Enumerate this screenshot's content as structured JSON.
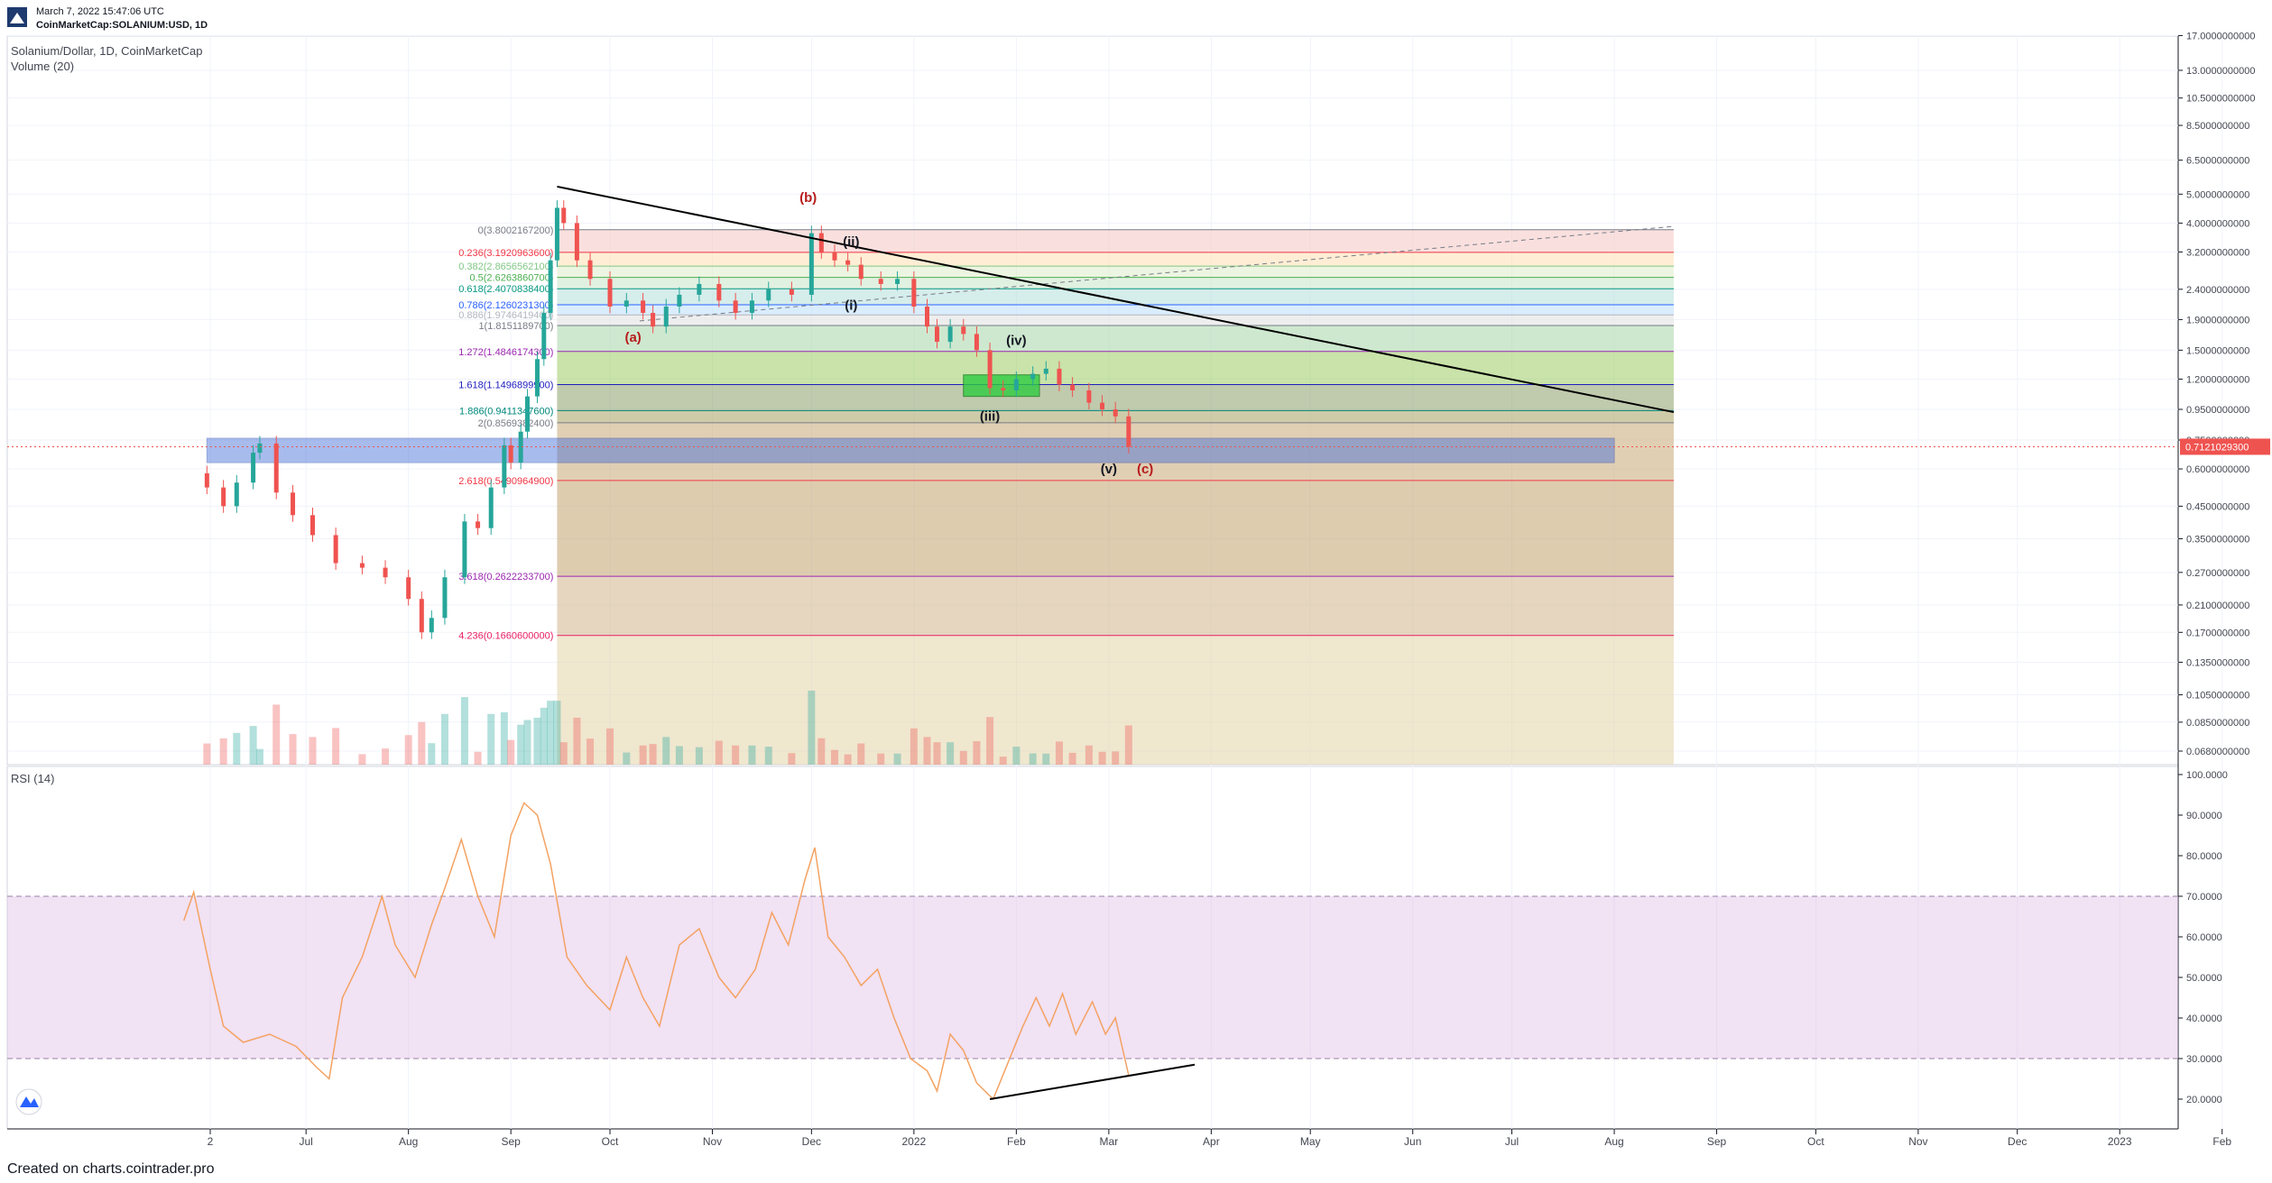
{
  "header": {
    "timestamp": "March 7, 2022 15:47:06 UTC",
    "symbol": "CoinMarketCap:SOLANIUM:USD, 1D"
  },
  "chart_title": "Solanium/Dollar, 1D, CoinMarketCap",
  "volume_label": "Volume (20)",
  "rsi_label": "RSI (14)",
  "footer": "Created on charts.cointrader.pro",
  "colors": {
    "up": "#26a69a",
    "down": "#ef5350",
    "trendline": "#000000",
    "rsi_line": "#f4a261",
    "rsi_band": "#e1bee7",
    "blue_zone": "#3f6ad8",
    "green_box": "#2ecc40",
    "wave_red": "#b71c1c",
    "price_tag": "#ef5350"
  },
  "chart_data": {
    "type": "candlestick",
    "price_axis_scale": "log",
    "price_ticks": [
      "17.0000000000",
      "13.0000000000",
      "10.5000000000",
      "8.5000000000",
      "6.5000000000",
      "5.0000000000",
      "4.0000000000",
      "3.2000000000",
      "2.4000000000",
      "1.9000000000",
      "1.5000000000",
      "1.2000000000",
      "0.9500000000",
      "0.7500000000",
      "0.6000000000",
      "0.4500000000",
      "0.3500000000",
      "0.2700000000",
      "0.2100000000",
      "0.1700000000",
      "0.1350000000",
      "0.1050000000",
      "0.0850000000",
      "0.0680000000"
    ],
    "price_tick_values": [
      17,
      13,
      10.5,
      8.5,
      6.5,
      5,
      4,
      3.2,
      2.4,
      1.9,
      1.5,
      1.2,
      0.95,
      0.75,
      0.6,
      0.45,
      0.35,
      0.27,
      0.21,
      0.17,
      0.135,
      0.105,
      0.085,
      0.068
    ],
    "last_price": "0.7121029300",
    "x_ticks": [
      "2",
      "Jul",
      "Aug",
      "Sep",
      "Oct",
      "Nov",
      "Dec",
      "2022",
      "Feb",
      "Mar",
      "Apr",
      "May",
      "Jun",
      "Jul",
      "Aug",
      "Sep",
      "Oct",
      "Nov",
      "Dec",
      "2023",
      "Feb"
    ],
    "x_tick_dates": [
      "2021-06-02",
      "2021-07-01",
      "2021-08-01",
      "2021-09-01",
      "2021-10-01",
      "2021-11-01",
      "2021-12-01",
      "2022-01-01",
      "2022-02-01",
      "2022-03-01",
      "2022-04-01",
      "2022-05-01",
      "2022-06-01",
      "2022-07-01",
      "2022-08-01",
      "2022-09-01",
      "2022-10-01",
      "2022-11-01",
      "2022-12-01",
      "2023-01-01",
      "2023-02-01"
    ],
    "price_path": [
      [
        "2021-05-25",
        0.58
      ],
      [
        "2021-06-01",
        0.52
      ],
      [
        "2021-06-06",
        0.45
      ],
      [
        "2021-06-10",
        0.54
      ],
      [
        "2021-06-15",
        0.68
      ],
      [
        "2021-06-17",
        0.73
      ],
      [
        "2021-06-22",
        0.5
      ],
      [
        "2021-06-27",
        0.42
      ],
      [
        "2021-07-03",
        0.36
      ],
      [
        "2021-07-10",
        0.29
      ],
      [
        "2021-07-18",
        0.28
      ],
      [
        "2021-07-25",
        0.26
      ],
      [
        "2021-08-01",
        0.22
      ],
      [
        "2021-08-05",
        0.17
      ],
      [
        "2021-08-08",
        0.19
      ],
      [
        "2021-08-12",
        0.26
      ],
      [
        "2021-08-18",
        0.4
      ],
      [
        "2021-08-22",
        0.38
      ],
      [
        "2021-08-26",
        0.52
      ],
      [
        "2021-08-30",
        0.72
      ],
      [
        "2021-09-01",
        0.63
      ],
      [
        "2021-09-04",
        0.8
      ],
      [
        "2021-09-06",
        1.05
      ],
      [
        "2021-09-09",
        1.4
      ],
      [
        "2021-09-11",
        2.0
      ],
      [
        "2021-09-13",
        3.0
      ],
      [
        "2021-09-15",
        4.5
      ],
      [
        "2021-09-17",
        4.0
      ],
      [
        "2021-09-21",
        3.0
      ],
      [
        "2021-09-25",
        2.6
      ],
      [
        "2021-10-01",
        2.1
      ],
      [
        "2021-10-06",
        2.2
      ],
      [
        "2021-10-11",
        2.0
      ],
      [
        "2021-10-14",
        1.8
      ],
      [
        "2021-10-18",
        2.1
      ],
      [
        "2021-10-22",
        2.3
      ],
      [
        "2021-10-28",
        2.5
      ],
      [
        "2021-11-03",
        2.2
      ],
      [
        "2021-11-08",
        2.0
      ],
      [
        "2021-11-13",
        2.2
      ],
      [
        "2021-11-18",
        2.4
      ],
      [
        "2021-11-25",
        2.3
      ],
      [
        "2021-12-01",
        3.7
      ],
      [
        "2021-12-04",
        3.2
      ],
      [
        "2021-12-08",
        3.0
      ],
      [
        "2021-12-12",
        2.9
      ],
      [
        "2021-12-16",
        2.6
      ],
      [
        "2021-12-22",
        2.5
      ],
      [
        "2021-12-27",
        2.6
      ],
      [
        "2022-01-01",
        2.1
      ],
      [
        "2022-01-05",
        1.8
      ],
      [
        "2022-01-08",
        1.6
      ],
      [
        "2022-01-12",
        1.8
      ],
      [
        "2022-01-16",
        1.7
      ],
      [
        "2022-01-20",
        1.5
      ],
      [
        "2022-01-24",
        1.12
      ],
      [
        "2022-01-28",
        1.1
      ],
      [
        "2022-02-01",
        1.2
      ],
      [
        "2022-02-06",
        1.25
      ],
      [
        "2022-02-10",
        1.3
      ],
      [
        "2022-02-14",
        1.15
      ],
      [
        "2022-02-18",
        1.1
      ],
      [
        "2022-02-23",
        1.0
      ],
      [
        "2022-02-27",
        0.95
      ],
      [
        "2022-03-03",
        0.9
      ],
      [
        "2022-03-07",
        0.712
      ]
    ],
    "rsi_axis_ticks": [
      "100.0000",
      "90.0000",
      "80.0000",
      "70.0000",
      "60.0000",
      "50.0000",
      "40.0000",
      "30.0000",
      "20.0000"
    ],
    "rsi_tick_values": [
      100,
      90,
      80,
      70,
      60,
      50,
      40,
      30,
      20
    ],
    "rsi_band": [
      30,
      70
    ],
    "rsi_path": [
      [
        "2021-05-25",
        64
      ],
      [
        "2021-05-28",
        71
      ],
      [
        "2021-06-02",
        52
      ],
      [
        "2021-06-06",
        38
      ],
      [
        "2021-06-12",
        34
      ],
      [
        "2021-06-20",
        36
      ],
      [
        "2021-06-28",
        33
      ],
      [
        "2021-07-04",
        28
      ],
      [
        "2021-07-08",
        25
      ],
      [
        "2021-07-12",
        45
      ],
      [
        "2021-07-18",
        55
      ],
      [
        "2021-07-24",
        70
      ],
      [
        "2021-07-28",
        58
      ],
      [
        "2021-08-03",
        50
      ],
      [
        "2021-08-08",
        63
      ],
      [
        "2021-08-12",
        72
      ],
      [
        "2021-08-17",
        84
      ],
      [
        "2021-08-22",
        70
      ],
      [
        "2021-08-27",
        60
      ],
      [
        "2021-09-01",
        85
      ],
      [
        "2021-09-05",
        93
      ],
      [
        "2021-09-09",
        90
      ],
      [
        "2021-09-13",
        78
      ],
      [
        "2021-09-18",
        55
      ],
      [
        "2021-09-24",
        48
      ],
      [
        "2021-10-01",
        42
      ],
      [
        "2021-10-06",
        55
      ],
      [
        "2021-10-11",
        45
      ],
      [
        "2021-10-16",
        38
      ],
      [
        "2021-10-22",
        58
      ],
      [
        "2021-10-28",
        62
      ],
      [
        "2021-11-03",
        50
      ],
      [
        "2021-11-08",
        45
      ],
      [
        "2021-11-14",
        52
      ],
      [
        "2021-11-19",
        66
      ],
      [
        "2021-11-24",
        58
      ],
      [
        "2021-11-29",
        74
      ],
      [
        "2021-12-02",
        82
      ],
      [
        "2021-12-06",
        60
      ],
      [
        "2021-12-11",
        55
      ],
      [
        "2021-12-16",
        48
      ],
      [
        "2021-12-21",
        52
      ],
      [
        "2021-12-26",
        40
      ],
      [
        "2021-12-31",
        30
      ],
      [
        "2022-01-05",
        27
      ],
      [
        "2022-01-08",
        22
      ],
      [
        "2022-01-12",
        36
      ],
      [
        "2022-01-16",
        32
      ],
      [
        "2022-01-20",
        24
      ],
      [
        "2022-01-25",
        20
      ],
      [
        "2022-01-30",
        30
      ],
      [
        "2022-02-03",
        38
      ],
      [
        "2022-02-07",
        45
      ],
      [
        "2022-02-11",
        38
      ],
      [
        "2022-02-15",
        46
      ],
      [
        "2022-02-19",
        36
      ],
      [
        "2022-02-24",
        44
      ],
      [
        "2022-02-28",
        36
      ],
      [
        "2022-03-03",
        40
      ],
      [
        "2022-03-07",
        26
      ]
    ],
    "fib_levels": [
      {
        "label": "0(3.8002167200)",
        "value": 3.8,
        "color": "#787b86"
      },
      {
        "label": "0.236(3.1920963600)",
        "value": 3.19,
        "color": "#f23645"
      },
      {
        "label": "0.382(2.8656562100)",
        "value": 2.87,
        "color": "#81c784"
      },
      {
        "label": "0.5(2.6263860700)",
        "value": 2.63,
        "color": "#4caf50"
      },
      {
        "label": "0.618(2.4070838400)",
        "value": 2.41,
        "color": "#089981"
      },
      {
        "label": "0.786(2.1260231300)",
        "value": 2.13,
        "color": "#2962ff"
      },
      {
        "label": "0.886(1.9746419400)",
        "value": 1.97,
        "color": "#b2b5be"
      },
      {
        "label": "1(1.8151189700)",
        "value": 1.815,
        "color": "#787b86"
      },
      {
        "label": "1.272(1.4846174300)",
        "value": 1.485,
        "color": "#9c27b0"
      },
      {
        "label": "1.618(1.1496899900)",
        "value": 1.15,
        "color": "#1e1ebf"
      },
      {
        "label": "1.886(0.9411347600)",
        "value": 0.941,
        "color": "#00897b"
      },
      {
        "label": "2(0.8569382400)",
        "value": 0.857,
        "color": "#787b86"
      },
      {
        "label": "2.618(0.5490964900)",
        "value": 0.549,
        "color": "#f23645"
      },
      {
        "label": "3.618(0.2622233700)",
        "value": 0.262,
        "color": "#9c27b0"
      },
      {
        "label": "4.236(0.1660600000)",
        "value": 0.166,
        "color": "#e91e63"
      }
    ],
    "wave_labels": [
      {
        "text": "(a)",
        "date": "2021-10-08",
        "price": 1.6,
        "color": "#b71c1c"
      },
      {
        "text": "(b)",
        "date": "2021-11-30",
        "price": 4.7,
        "color": "#b71c1c"
      },
      {
        "text": "(c)",
        "date": "2022-03-12",
        "price": 0.58,
        "color": "#b71c1c"
      },
      {
        "text": "(i)",
        "date": "2021-12-13",
        "price": 2.05,
        "color": "#131722"
      },
      {
        "text": "(ii)",
        "date": "2021-12-13",
        "price": 3.35,
        "color": "#131722"
      },
      {
        "text": "(iii)",
        "date": "2022-01-24",
        "price": 0.87,
        "color": "#131722"
      },
      {
        "text": "(iv)",
        "date": "2022-02-01",
        "price": 1.56,
        "color": "#131722"
      },
      {
        "text": "(v)",
        "date": "2022-03-01",
        "price": 0.58,
        "color": "#131722"
      }
    ]
  }
}
